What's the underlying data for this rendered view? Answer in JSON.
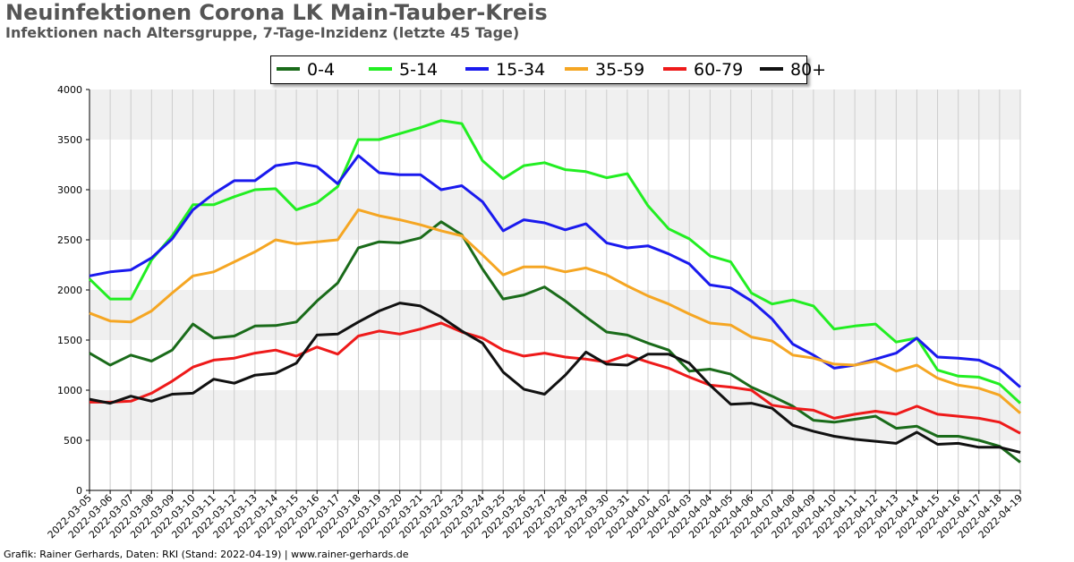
{
  "header": {
    "title": "Neuinfektionen Corona LK Main-Tauber-Kreis",
    "subtitle": "Infektionen nach Altersgruppe, 7-Tage-Inzidenz (letzte 45 Tage)"
  },
  "footer": {
    "text": "Grafik: Rainer Gerhards, Daten: RKI (Stand: 2022-04-19) | www.rainer-gerhards.de"
  },
  "chart_data": {
    "type": "line",
    "title": "Neuinfektionen Corona LK Main-Tauber-Kreis",
    "subtitle": "Infektionen nach Altersgruppe, 7-Tage-Inzidenz (letzte 45 Tage)",
    "xlabel": "",
    "ylabel": "",
    "ylim": [
      0,
      4000
    ],
    "yticks": [
      0,
      500,
      1000,
      1500,
      2000,
      2500,
      3000,
      3500,
      4000
    ],
    "grid": true,
    "legend": "top-center",
    "x": [
      "2022-03-05",
      "2022-03-06",
      "2022-03-07",
      "2022-03-08",
      "2022-03-09",
      "2022-03-10",
      "2022-03-11",
      "2022-03-12",
      "2022-03-13",
      "2022-03-14",
      "2022-03-15",
      "2022-03-16",
      "2022-03-17",
      "2022-03-18",
      "2022-03-19",
      "2022-03-20",
      "2022-03-21",
      "2022-03-22",
      "2022-03-23",
      "2022-03-24",
      "2022-03-25",
      "2022-03-26",
      "2022-03-27",
      "2022-03-28",
      "2022-03-29",
      "2022-03-30",
      "2022-03-31",
      "2022-04-01",
      "2022-04-02",
      "2022-04-03",
      "2022-04-04",
      "2022-04-05",
      "2022-04-06",
      "2022-04-07",
      "2022-04-08",
      "2022-04-09",
      "2022-04-10",
      "2022-04-11",
      "2022-04-12",
      "2022-04-13",
      "2022-04-14",
      "2022-04-15",
      "2022-04-16",
      "2022-04-17",
      "2022-04-18",
      "2022-04-19"
    ],
    "series": [
      {
        "name": "0-4",
        "color": "#1a6b1a",
        "values": [
          1370,
          1250,
          1350,
          1290,
          1400,
          1660,
          1520,
          1540,
          1640,
          1645,
          1680,
          1890,
          2070,
          2420,
          2480,
          2470,
          2520,
          2680,
          2550,
          2210,
          1910,
          1950,
          2030,
          1890,
          1730,
          1580,
          1550,
          1470,
          1400,
          1190,
          1210,
          1160,
          1030,
          940,
          840,
          700,
          680,
          710,
          740,
          620,
          640,
          540,
          540,
          500,
          440,
          280
        ]
      },
      {
        "name": "5-14",
        "color": "#22ee22",
        "values": [
          2110,
          1910,
          1910,
          2300,
          2540,
          2850,
          2850,
          2930,
          3000,
          3010,
          2800,
          2870,
          3030,
          3500,
          3500,
          3560,
          3620,
          3690,
          3660,
          3290,
          3110,
          3240,
          3270,
          3200,
          3180,
          3120,
          3160,
          2840,
          2610,
          2510,
          2340,
          2280,
          1970,
          1860,
          1900,
          1840,
          1610,
          1640,
          1660,
          1480,
          1520,
          1200,
          1140,
          1130,
          1060,
          870
        ]
      },
      {
        "name": "15-34",
        "color": "#1a1aee",
        "values": [
          2140,
          2180,
          2200,
          2320,
          2510,
          2800,
          2960,
          3090,
          3090,
          3240,
          3270,
          3230,
          3060,
          3340,
          3170,
          3150,
          3150,
          3000,
          3040,
          2880,
          2590,
          2700,
          2670,
          2600,
          2660,
          2470,
          2420,
          2440,
          2360,
          2260,
          2050,
          2020,
          1890,
          1710,
          1460,
          1350,
          1220,
          1250,
          1310,
          1370,
          1520,
          1330,
          1320,
          1300,
          1210,
          1030
        ]
      },
      {
        "name": "35-59",
        "color": "#f5a623",
        "values": [
          1770,
          1690,
          1680,
          1790,
          1970,
          2140,
          2180,
          2280,
          2380,
          2500,
          2460,
          2480,
          2500,
          2800,
          2740,
          2700,
          2650,
          2590,
          2540,
          2350,
          2150,
          2230,
          2230,
          2180,
          2220,
          2150,
          2040,
          1940,
          1860,
          1760,
          1670,
          1650,
          1530,
          1490,
          1350,
          1320,
          1260,
          1250,
          1290,
          1190,
          1250,
          1120,
          1050,
          1020,
          950,
          770
        ]
      },
      {
        "name": "60-79",
        "color": "#ee1a1a",
        "values": [
          880,
          880,
          890,
          970,
          1090,
          1230,
          1300,
          1320,
          1370,
          1400,
          1340,
          1430,
          1360,
          1540,
          1590,
          1560,
          1610,
          1670,
          1580,
          1520,
          1400,
          1340,
          1370,
          1330,
          1310,
          1280,
          1350,
          1280,
          1220,
          1130,
          1050,
          1030,
          1000,
          850,
          820,
          800,
          720,
          760,
          790,
          760,
          840,
          760,
          740,
          720,
          680,
          570
        ]
      },
      {
        "name": "80+",
        "color": "#111111",
        "values": [
          910,
          870,
          940,
          890,
          960,
          970,
          1110,
          1070,
          1150,
          1170,
          1270,
          1550,
          1560,
          1680,
          1790,
          1870,
          1840,
          1730,
          1590,
          1470,
          1180,
          1010,
          960,
          1150,
          1380,
          1260,
          1250,
          1360,
          1360,
          1270,
          1050,
          860,
          870,
          820,
          650,
          590,
          540,
          510,
          490,
          470,
          580,
          460,
          470,
          430,
          430,
          380
        ]
      }
    ]
  }
}
